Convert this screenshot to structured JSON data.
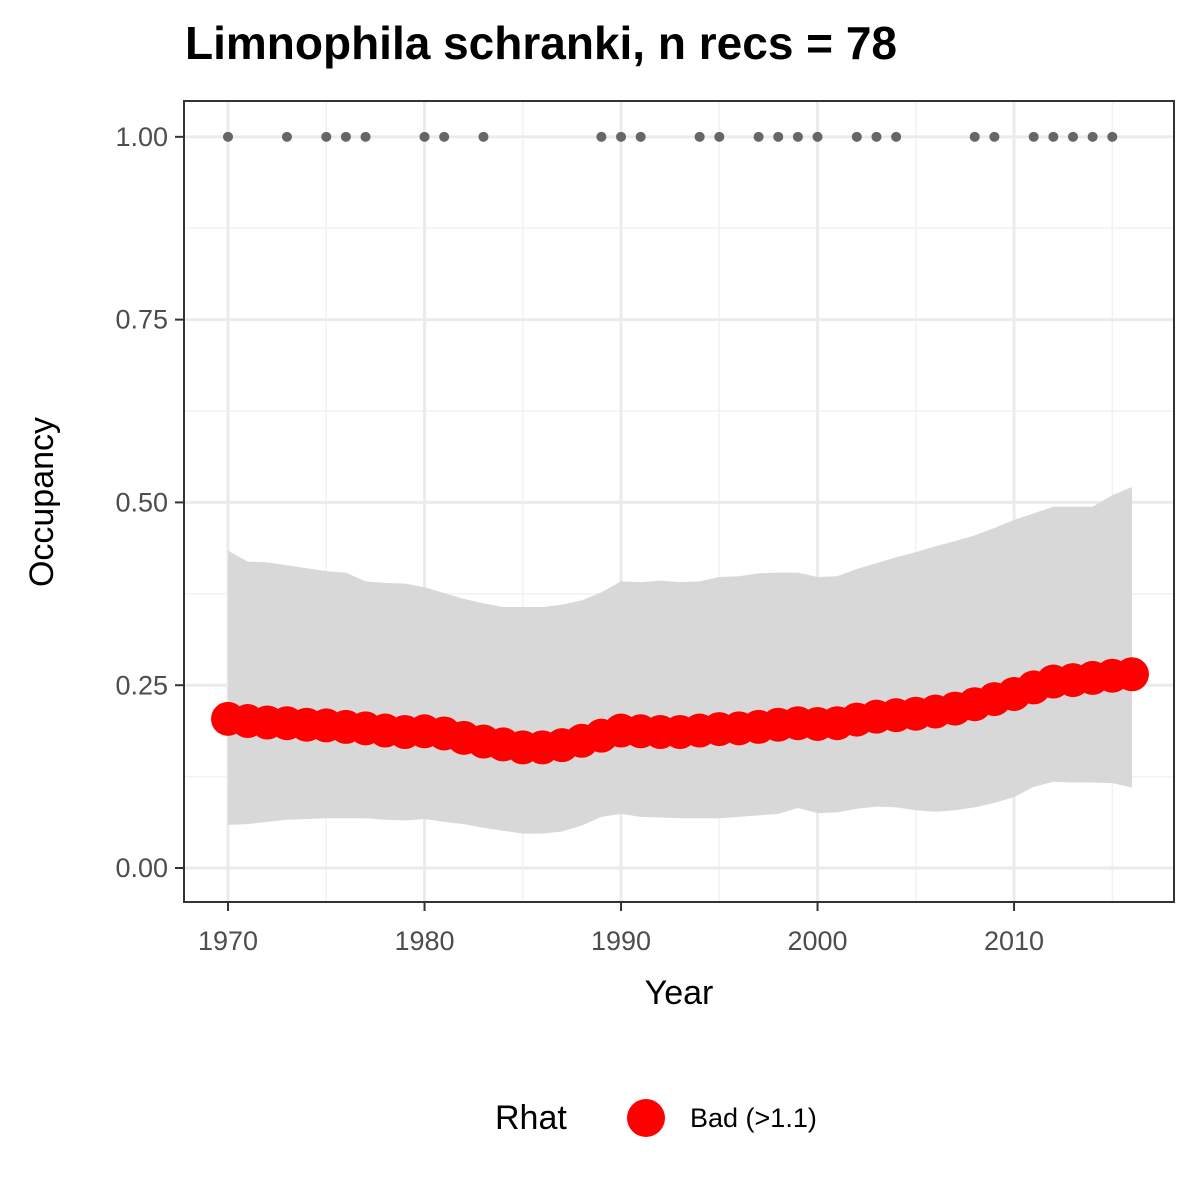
{
  "chart_data": {
    "type": "scatter",
    "title": "Limnophila schranki, n recs = 78",
    "x_label": "Year",
    "y_label": "Occupancy",
    "legend_title": "Rhat",
    "x": [
      1970,
      1971,
      1972,
      1973,
      1974,
      1975,
      1976,
      1977,
      1978,
      1979,
      1980,
      1981,
      1982,
      1983,
      1984,
      1985,
      1986,
      1987,
      1988,
      1989,
      1990,
      1991,
      1992,
      1993,
      1994,
      1995,
      1996,
      1997,
      1998,
      1999,
      2000,
      2001,
      2002,
      2003,
      2004,
      2005,
      2006,
      2007,
      2008,
      2009,
      2010,
      2011,
      2012,
      2013,
      2014,
      2015,
      2016
    ],
    "series": [
      {
        "name": "Bad (>1.1)",
        "color": "#ff0000",
        "values": [
          0.204,
          0.201,
          0.199,
          0.198,
          0.196,
          0.195,
          0.193,
          0.191,
          0.188,
          0.186,
          0.187,
          0.184,
          0.178,
          0.173,
          0.169,
          0.165,
          0.165,
          0.168,
          0.174,
          0.181,
          0.188,
          0.187,
          0.186,
          0.186,
          0.188,
          0.19,
          0.191,
          0.193,
          0.196,
          0.198,
          0.197,
          0.198,
          0.203,
          0.207,
          0.209,
          0.211,
          0.214,
          0.218,
          0.224,
          0.231,
          0.238,
          0.247,
          0.255,
          0.257,
          0.26,
          0.263,
          0.265
        ]
      }
    ],
    "band": {
      "color": "#d6d6d6",
      "upper": [
        0.434,
        0.419,
        0.418,
        0.414,
        0.41,
        0.406,
        0.404,
        0.392,
        0.39,
        0.389,
        0.384,
        0.376,
        0.368,
        0.362,
        0.357,
        0.357,
        0.357,
        0.36,
        0.366,
        0.377,
        0.392,
        0.391,
        0.393,
        0.391,
        0.392,
        0.398,
        0.399,
        0.403,
        0.404,
        0.404,
        0.398,
        0.399,
        0.409,
        0.417,
        0.425,
        0.432,
        0.44,
        0.447,
        0.455,
        0.465,
        0.476,
        0.485,
        0.494,
        0.494,
        0.494,
        0.51,
        0.521
      ],
      "lower": [
        0.059,
        0.06,
        0.063,
        0.066,
        0.067,
        0.068,
        0.068,
        0.068,
        0.066,
        0.065,
        0.067,
        0.063,
        0.06,
        0.055,
        0.051,
        0.047,
        0.047,
        0.05,
        0.058,
        0.07,
        0.074,
        0.07,
        0.069,
        0.068,
        0.068,
        0.068,
        0.07,
        0.072,
        0.074,
        0.082,
        0.075,
        0.076,
        0.081,
        0.084,
        0.083,
        0.079,
        0.077,
        0.079,
        0.083,
        0.089,
        0.097,
        0.111,
        0.118,
        0.117,
        0.117,
        0.116,
        0.11
      ]
    },
    "records": {
      "color": "#666666",
      "x": [
        1970,
        1973,
        1975,
        1976,
        1977,
        1980,
        1981,
        1983,
        1989,
        1990,
        1991,
        1994,
        1995,
        1997,
        1998,
        1999,
        2000,
        2002,
        2003,
        2004,
        2008,
        2009,
        2011,
        2012,
        2013,
        2014,
        2015
      ],
      "values": [
        1,
        1,
        1,
        1,
        1,
        1,
        1,
        1,
        1,
        1,
        1,
        1,
        1,
        1,
        1,
        1,
        1,
        1,
        1,
        1,
        1,
        1,
        1,
        1,
        1,
        1,
        1
      ]
    },
    "xlim": [
      1967.76,
      2018.14
    ],
    "ylim": [
      -0.0465,
      1.049
    ],
    "xticks": [
      1970,
      1980,
      1990,
      2000,
      2010
    ],
    "yticks": [
      {
        "value": 0,
        "label": "0.00"
      },
      {
        "value": 0.25,
        "label": "0.25"
      },
      {
        "value": 0.5,
        "label": "0.50"
      },
      {
        "value": 0.75,
        "label": "0.75"
      },
      {
        "value": 1,
        "label": "1.00"
      }
    ],
    "xminorticks": [
      1975,
      1985,
      1995,
      2005,
      2015
    ],
    "yminorticks": [
      0.125,
      0.375,
      0.625,
      0.875
    ],
    "grid": true
  }
}
